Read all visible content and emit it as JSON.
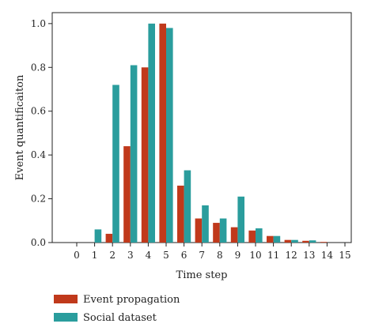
{
  "chart_data": {
    "type": "bar",
    "title": "",
    "xlabel": "Time step",
    "ylabel": "Event quantificaiton",
    "categories": [
      "0",
      "1",
      "2",
      "3",
      "4",
      "5",
      "6",
      "7",
      "8",
      "9",
      "10",
      "11",
      "12",
      "13",
      "14",
      "15"
    ],
    "series": [
      {
        "name": "Event propagation",
        "color": "#c0391b",
        "values": [
          0,
          0,
          0.04,
          0.44,
          0.8,
          1.0,
          0.26,
          0.11,
          0.09,
          0.07,
          0.055,
          0.03,
          0.012,
          0.008,
          0.003,
          0
        ]
      },
      {
        "name": "Social dataset",
        "color": "#2a9d9d",
        "values": [
          0,
          0.06,
          0.72,
          0.81,
          1.0,
          0.98,
          0.33,
          0.17,
          0.11,
          0.21,
          0.065,
          0.03,
          0.012,
          0.01,
          0,
          0
        ]
      }
    ],
    "yticks": [
      "0.0",
      "0.2",
      "0.4",
      "0.6",
      "0.8",
      "1.0"
    ],
    "ylim": [
      0,
      1.05
    ],
    "grid": false,
    "legend": "bottom-left"
  }
}
